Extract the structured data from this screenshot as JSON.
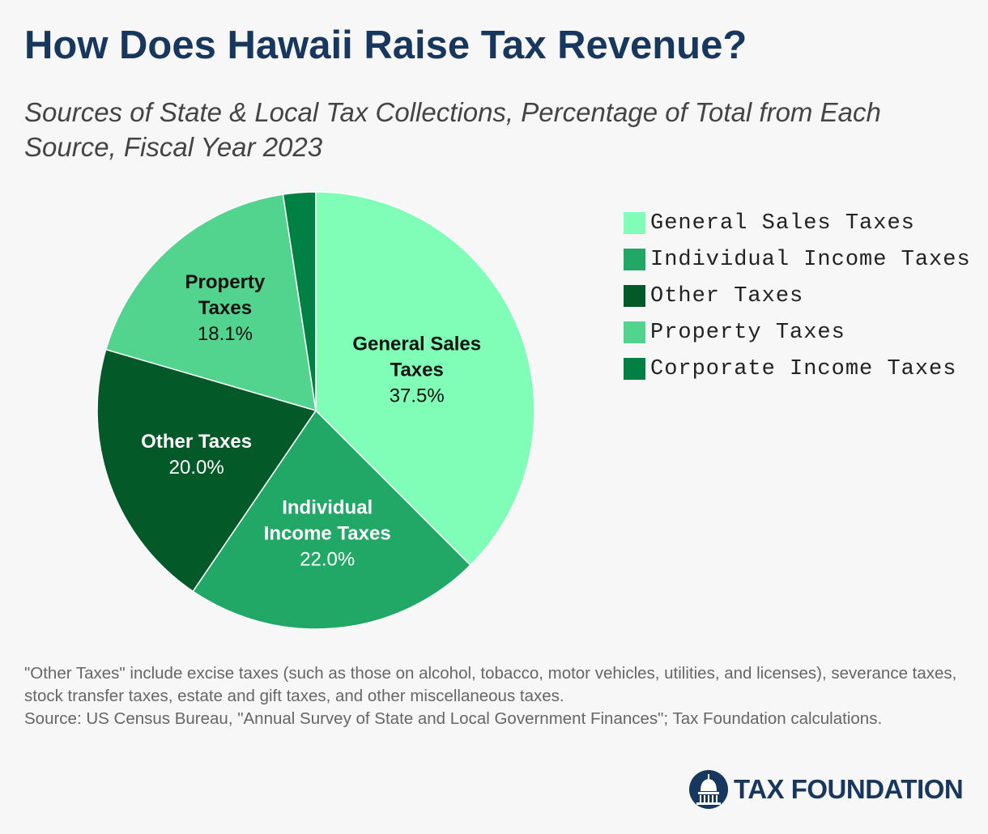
{
  "header": {
    "title": "How Does Hawaii Raise Tax Revenue?",
    "subtitle": "Sources of State & Local Tax Collections, Percentage of Total from Each Source, Fiscal Year 2023"
  },
  "chart_data": {
    "type": "pie",
    "title": "How Does Hawaii Raise Tax Revenue?",
    "subtitle": "Sources of State & Local Tax Collections, Percentage of Total from Each Source, Fiscal Year 2023",
    "unit": "%",
    "legend_position": "right",
    "slices": [
      {
        "name": "General Sales Taxes",
        "value": 37.5,
        "value_label": "37.5%",
        "label_lines": [
          "General Sales",
          "Taxes"
        ],
        "color": "#80fdb6",
        "label_color": "#111111"
      },
      {
        "name": "Individual Income Taxes",
        "value": 22.0,
        "value_label": "22.0%",
        "label_lines": [
          "Individual",
          "Income Taxes"
        ],
        "color": "#21a866",
        "label_color": "#ffffff"
      },
      {
        "name": "Other Taxes",
        "value": 20.0,
        "value_label": "20.0%",
        "label_lines": [
          "Other Taxes"
        ],
        "color": "#035a28",
        "label_color": "#ffffff"
      },
      {
        "name": "Property Taxes",
        "value": 18.1,
        "value_label": "18.1%",
        "label_lines": [
          "Property",
          "Taxes"
        ],
        "color": "#52d48e",
        "label_color": "#111111"
      },
      {
        "name": "Corporate Income Taxes",
        "value": 2.4,
        "value_label": "",
        "label_lines": [],
        "color": "#008143",
        "label_color": "#ffffff"
      }
    ]
  },
  "legend": {
    "items": [
      {
        "label": "General Sales Taxes",
        "color": "#80fdb6"
      },
      {
        "label": "Individual Income Taxes",
        "color": "#21a866"
      },
      {
        "label": "Other Taxes",
        "color": "#035a28"
      },
      {
        "label": "Property Taxes",
        "color": "#52d48e"
      },
      {
        "label": "Corporate Income Taxes",
        "color": "#008143"
      }
    ]
  },
  "footnote": {
    "note": "\"Other Taxes\" include excise taxes (such as those on alcohol, tobacco, motor vehicles, utilities, and licenses), severance taxes, stock transfer taxes, estate and gift taxes, and other miscellaneous taxes.",
    "source": "Source: US Census Bureau, \"Annual Survey of State and Local Government Finances\"; Tax Foundation calculations."
  },
  "brand": {
    "name": "TAX FOUNDATION",
    "icon": "capitol-dome-icon",
    "color": "#17375e"
  }
}
